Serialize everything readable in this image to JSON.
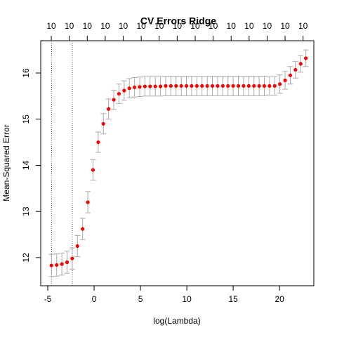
{
  "chart_data": {
    "type": "errorbar_scatter",
    "title": "CV Errors Ridge",
    "x_label": "log(Lambda)",
    "y_label": "Mean-Squared Error",
    "x": [
      -4.6,
      -4.04,
      -3.48,
      -2.92,
      -2.36,
      -1.8,
      -1.24,
      -0.68,
      -0.12,
      0.44,
      1.0,
      1.56,
      2.12,
      2.68,
      3.24,
      3.8,
      4.36,
      4.92,
      5.48,
      6.04,
      6.6,
      7.16,
      7.72,
      8.28,
      8.84,
      9.4,
      9.96,
      10.52,
      11.08,
      11.64,
      12.2,
      12.76,
      13.32,
      13.88,
      14.44,
      15.0,
      15.56,
      16.12,
      16.68,
      17.24,
      17.8,
      18.36,
      18.92,
      19.48,
      20.04,
      20.6,
      21.16,
      21.72,
      22.28,
      22.84
    ],
    "values": [
      11.83,
      11.84,
      11.86,
      11.9,
      11.98,
      12.25,
      12.62,
      13.2,
      13.9,
      14.5,
      14.9,
      15.22,
      15.42,
      15.55,
      15.62,
      15.67,
      15.69,
      15.7,
      15.71,
      15.71,
      15.71,
      15.71,
      15.72,
      15.72,
      15.72,
      15.72,
      15.72,
      15.72,
      15.72,
      15.72,
      15.72,
      15.72,
      15.72,
      15.72,
      15.72,
      15.72,
      15.72,
      15.72,
      15.72,
      15.72,
      15.72,
      15.72,
      15.72,
      15.72,
      15.76,
      15.84,
      15.95,
      16.07,
      16.2,
      16.32
    ],
    "errors": [
      0.24,
      0.24,
      0.24,
      0.24,
      0.23,
      0.23,
      0.23,
      0.23,
      0.22,
      0.22,
      0.22,
      0.22,
      0.21,
      0.21,
      0.21,
      0.21,
      0.21,
      0.21,
      0.21,
      0.21,
      0.21,
      0.21,
      0.21,
      0.21,
      0.21,
      0.21,
      0.21,
      0.21,
      0.21,
      0.21,
      0.21,
      0.21,
      0.21,
      0.21,
      0.21,
      0.21,
      0.21,
      0.21,
      0.21,
      0.21,
      0.21,
      0.21,
      0.2,
      0.2,
      0.2,
      0.19,
      0.19,
      0.18,
      0.18,
      0.18
    ],
    "color": "#ff0000",
    "error_color": "#aaaaaa",
    "xlim": [
      -5.76,
      23.7
    ],
    "ylim": [
      11.39,
      16.7
    ],
    "xticks": [
      -5,
      0,
      5,
      10,
      15,
      20
    ],
    "yticks": [
      12,
      13,
      14,
      15,
      16
    ],
    "vlines": [
      -4.6,
      -2.35
    ],
    "top_ticks": [
      -4.62,
      -2.68,
      -0.74,
      1.2,
      3.14,
      5.08,
      7.02,
      8.96,
      10.9,
      12.84,
      14.78,
      16.72,
      18.66,
      20.6,
      22.54
    ],
    "top_labels": [
      10,
      10,
      10,
      10,
      10,
      10,
      10,
      10,
      10,
      10,
      10,
      10,
      10,
      10,
      10
    ]
  }
}
